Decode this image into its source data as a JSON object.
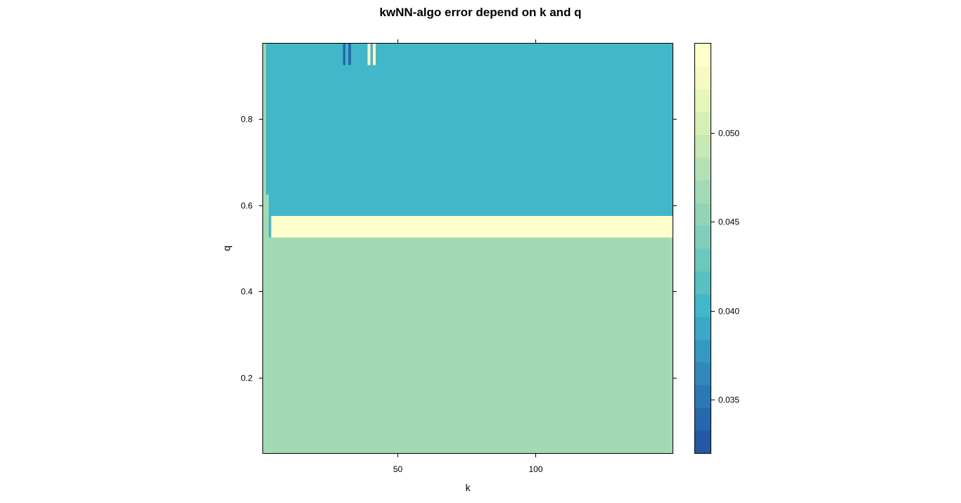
{
  "chart_data": {
    "type": "heatmap",
    "title": "kwNN-algo error depend on k and q",
    "xlabel": "k",
    "ylabel": "q",
    "xlim": [
      1,
      150
    ],
    "ylim": [
      0.025,
      0.975
    ],
    "x_ticks": [
      50,
      100
    ],
    "x_tick_labels": [
      "50",
      "100"
    ],
    "y_ticks": [
      0.2,
      0.4,
      0.6,
      0.8
    ],
    "y_tick_labels": [
      "0.2",
      "0.4",
      "0.6",
      "0.8"
    ],
    "zlim": [
      0.032,
      0.055
    ],
    "colorbar_ticks": [
      0.035,
      0.04,
      0.045,
      0.05
    ],
    "colorbar_tick_labels": [
      "0.035",
      "0.040",
      "0.045",
      "0.050"
    ],
    "colorbar_colors": [
      "#2458a6",
      "#2668ad",
      "#2b78b4",
      "#3188bb",
      "#3598c0",
      "#3ba8c5",
      "#42b7c9",
      "#58c0c1",
      "#6cc7bd",
      "#7fcdba",
      "#92d4b8",
      "#a3dab6",
      "#b4e1b4",
      "#c5e8b5",
      "#d6efb4",
      "#e6f5b8",
      "#f4fac2",
      "#ffffcc"
    ],
    "grid": false,
    "legend": "right colorbar",
    "regions": [
      {
        "k": [
          1,
          150
        ],
        "q": [
          0.025,
          0.525
        ],
        "error": 0.0465
      },
      {
        "k": [
          1,
          150
        ],
        "q": [
          0.525,
          0.575
        ],
        "error": 0.0545
      },
      {
        "k": [
          1,
          150
        ],
        "q": [
          0.575,
          0.975
        ],
        "error": 0.0405
      },
      {
        "k": [
          1,
          2
        ],
        "q": [
          0.625,
          0.975
        ],
        "error": 0.0465
      },
      {
        "k": [
          1,
          3
        ],
        "q": [
          0.525,
          0.625
        ],
        "error": 0.0465
      },
      {
        "k": [
          3,
          4
        ],
        "q": [
          0.525,
          0.575
        ],
        "error": 0.0405
      },
      {
        "k": [
          30,
          31
        ],
        "q": [
          0.925,
          0.975
        ],
        "error": 0.0335
      },
      {
        "k": [
          32,
          33
        ],
        "q": [
          0.925,
          0.975
        ],
        "error": 0.0335
      },
      {
        "k": [
          39,
          40
        ],
        "q": [
          0.925,
          0.975
        ],
        "error": 0.0545
      },
      {
        "k": [
          41,
          42
        ],
        "q": [
          0.925,
          0.975
        ],
        "error": 0.0545
      }
    ]
  }
}
